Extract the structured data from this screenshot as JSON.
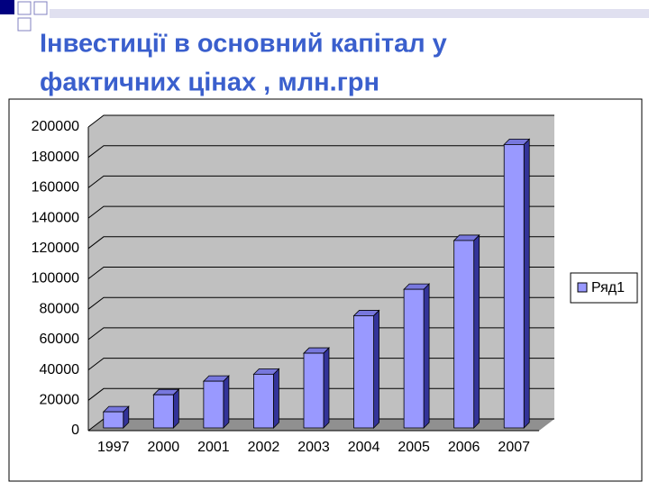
{
  "chart_data": {
    "type": "bar",
    "title": [
      "Інвестиції в основний капітал у",
      "фактичних цінах , млн.грн"
    ],
    "categories": [
      "1997",
      "2000",
      "2001",
      "2002",
      "2003",
      "2004",
      "2005",
      "2006",
      "2007"
    ],
    "series": [
      {
        "name": "Ряд1",
        "color": "#9999ff",
        "values": [
          12401,
          23629,
          32573,
          37178,
          51011,
          75714,
          93096,
          125254,
          188486
        ]
      }
    ],
    "ylim": [
      0,
      200000
    ],
    "yticks": [
      0,
      20000,
      40000,
      60000,
      80000,
      100000,
      120000,
      140000,
      160000,
      180000,
      200000
    ],
    "grid": true,
    "legend": "right"
  }
}
